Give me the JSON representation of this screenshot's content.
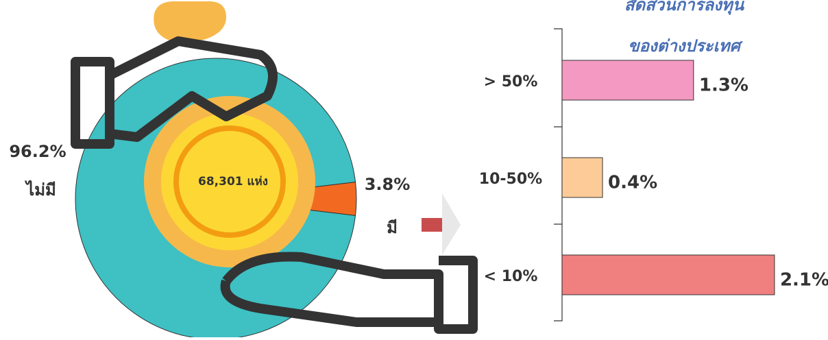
{
  "chart_data": [
    {
      "type": "pie",
      "categories": [
        "ไม่มี",
        "มี"
      ],
      "values": [
        96.2,
        3.8
      ],
      "value_labels": [
        "96.2%",
        "3.8%"
      ],
      "colors": [
        "#3fc0c3",
        "#f26a21"
      ],
      "center_label": "68,301 แห่ง"
    },
    {
      "type": "hbar",
      "title": "สัดส่วนการลงทุน",
      "subtitle": "ของต่างประเทศ",
      "categories": [
        "> 50%",
        "10-50%",
        "< 10%"
      ],
      "values": [
        1.3,
        0.4,
        2.1
      ],
      "value_labels": [
        "1.3%",
        "0.4%",
        "2.1%"
      ],
      "colors": [
        "#f49ac2",
        "#fccb97",
        "#f07f7f"
      ],
      "xlim": [
        0,
        2.5
      ]
    }
  ]
}
